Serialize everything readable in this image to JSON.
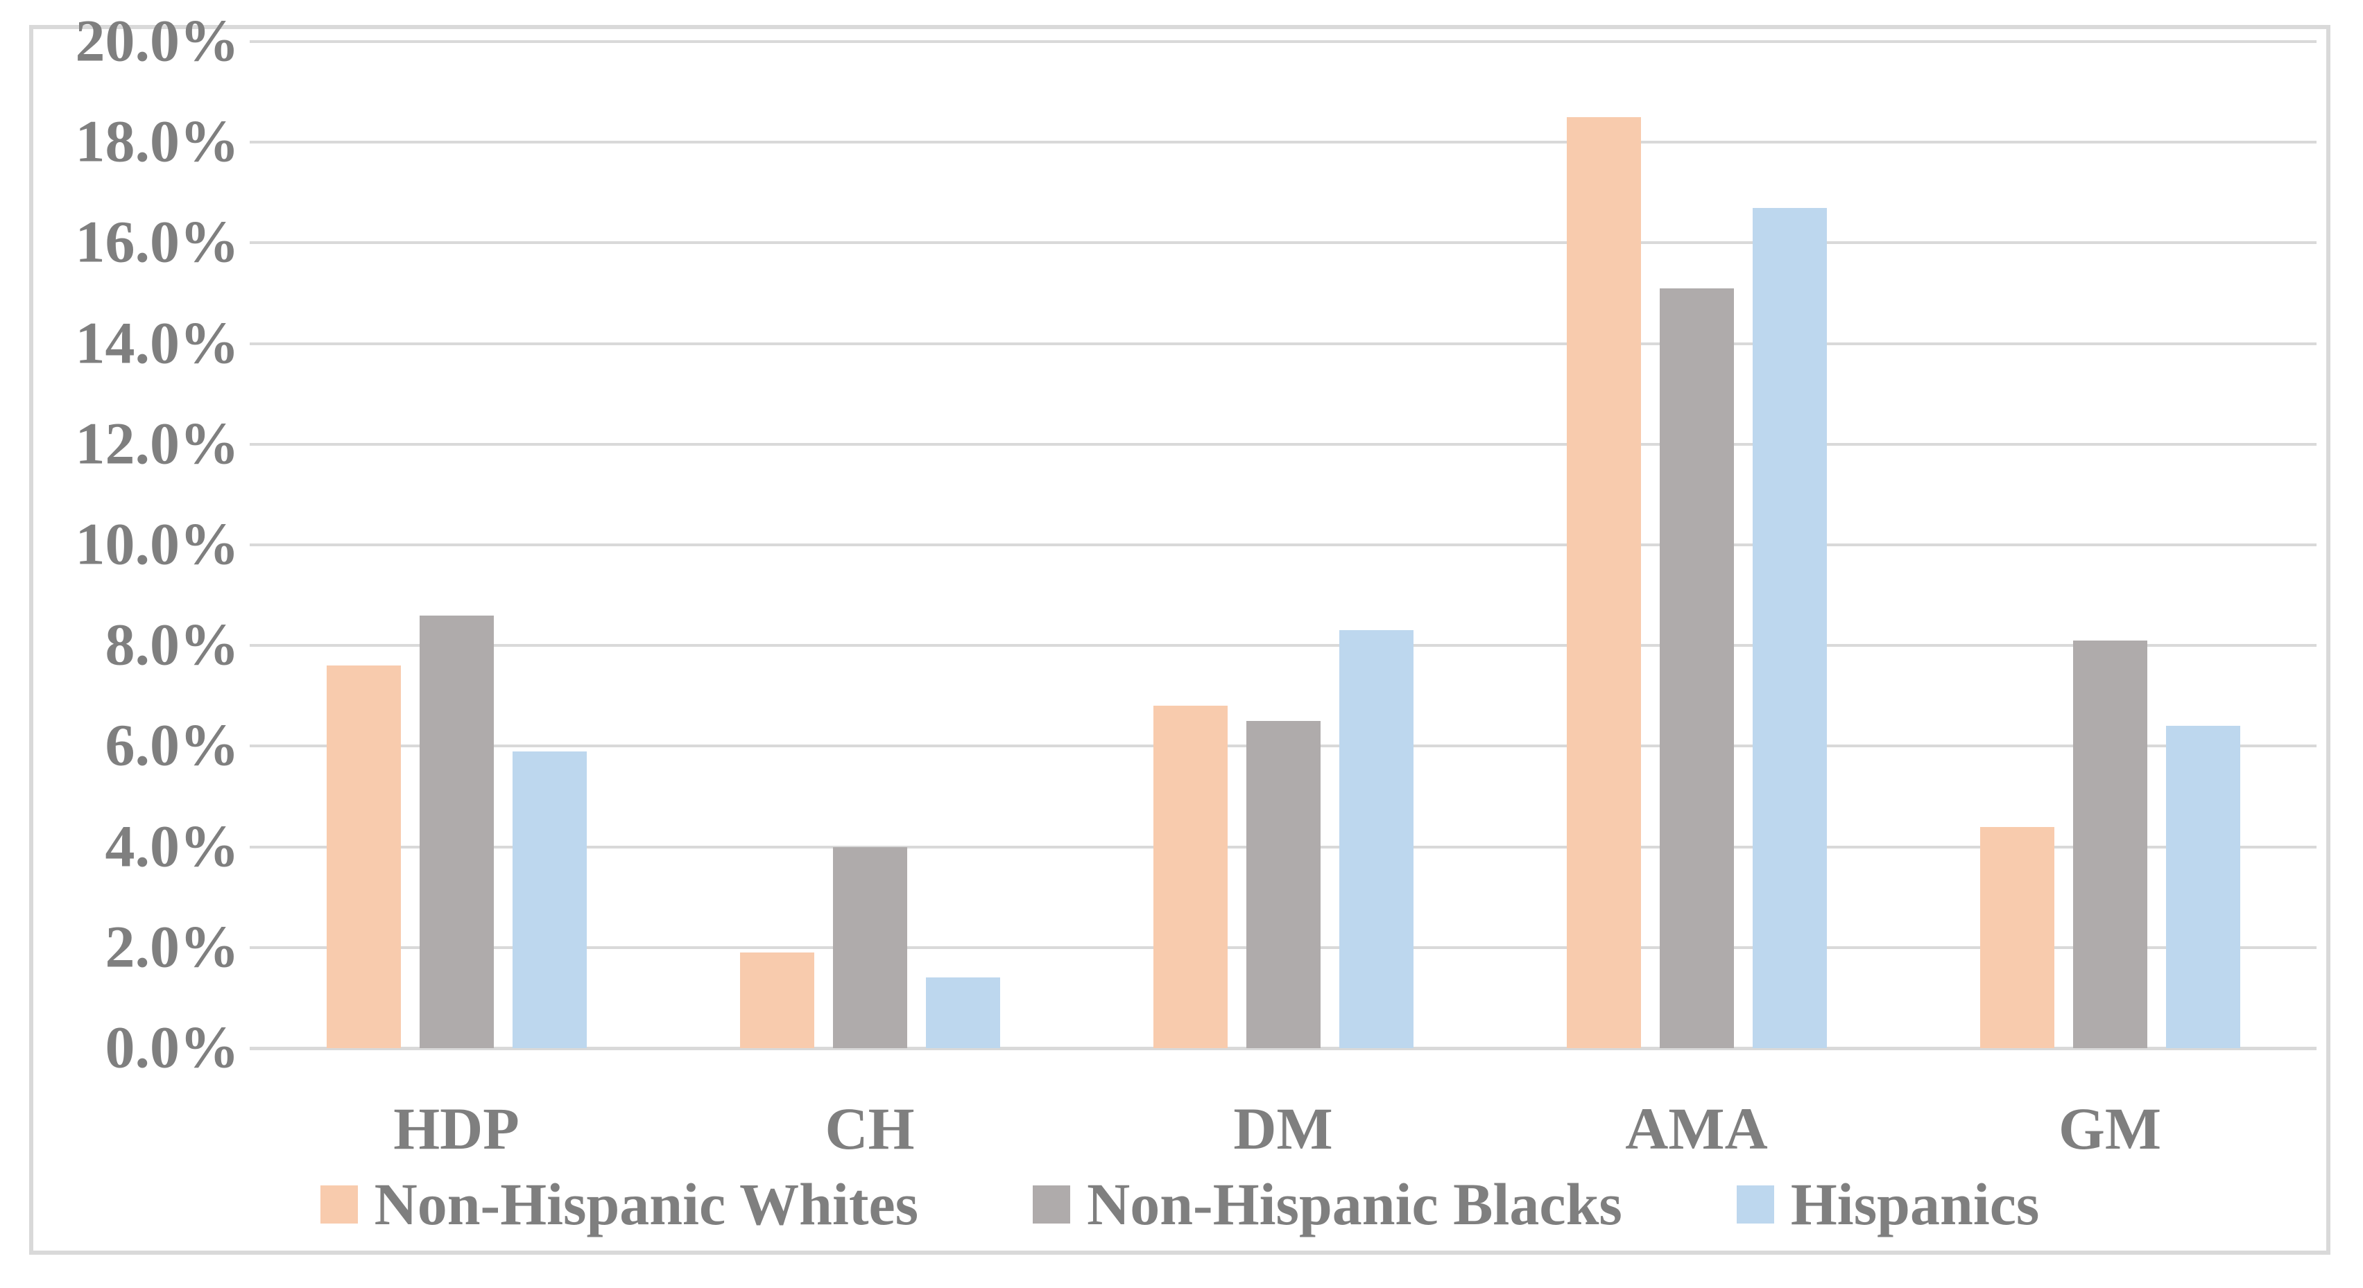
{
  "chart_data": {
    "type": "bar",
    "title": "",
    "categories": [
      "HDP",
      "CH",
      "DM",
      "AMA",
      "GM"
    ],
    "series": [
      {
        "name": "Non-Hispanic Whites",
        "color": "#F8CBAD",
        "values": [
          7.6,
          1.9,
          6.8,
          18.5,
          4.4
        ]
      },
      {
        "name": "Non-Hispanic Blacks",
        "color": "#AFABAB",
        "values": [
          8.6,
          4.0,
          6.5,
          15.1,
          8.1
        ]
      },
      {
        "name": "Hispanics",
        "color": "#BDD7EE",
        "values": [
          5.9,
          1.4,
          8.3,
          16.7,
          6.4
        ]
      }
    ],
    "y_axis": {
      "min": 0,
      "max": 20,
      "step": 2,
      "tick_labels_top_to_bottom": [
        "20.0%",
        "18.0%",
        "16.0%",
        "14.0%",
        "12.0%",
        "10.0%",
        "8.0%",
        "6.0%",
        "4.0%",
        "2.0%",
        "0.0%"
      ]
    },
    "grid": true,
    "legend_position": "bottom"
  },
  "style_colors": {
    "gridline": "#D9D9D9",
    "axis_line": "#D9D9D9",
    "chart_border": "#D9D9D9",
    "label_text": "#7F7F7F",
    "background": "#FFFFFF"
  }
}
